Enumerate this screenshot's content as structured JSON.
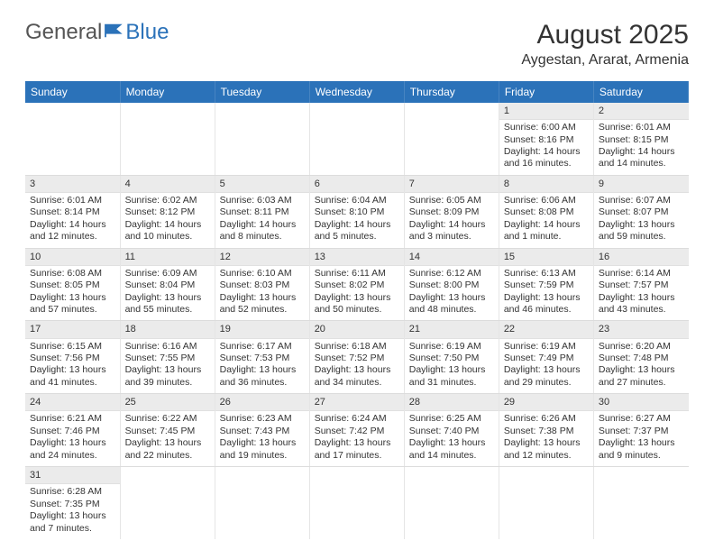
{
  "logo": {
    "part1": "General",
    "part2": "Blue"
  },
  "title": "August 2025",
  "subtitle": "Aygestan, Ararat, Armenia",
  "colors": {
    "accent": "#2b72b9",
    "header_text": "#ffffff",
    "daynum_bg": "#ebebeb",
    "border": "#dcdcdc"
  },
  "days_of_week": [
    "Sunday",
    "Monday",
    "Tuesday",
    "Wednesday",
    "Thursday",
    "Friday",
    "Saturday"
  ],
  "weeks": [
    [
      null,
      null,
      null,
      null,
      null,
      {
        "n": "1",
        "sr": "Sunrise: 6:00 AM",
        "ss": "Sunset: 8:16 PM",
        "dl1": "Daylight: 14 hours",
        "dl2": "and 16 minutes."
      },
      {
        "n": "2",
        "sr": "Sunrise: 6:01 AM",
        "ss": "Sunset: 8:15 PM",
        "dl1": "Daylight: 14 hours",
        "dl2": "and 14 minutes."
      }
    ],
    [
      {
        "n": "3",
        "sr": "Sunrise: 6:01 AM",
        "ss": "Sunset: 8:14 PM",
        "dl1": "Daylight: 14 hours",
        "dl2": "and 12 minutes."
      },
      {
        "n": "4",
        "sr": "Sunrise: 6:02 AM",
        "ss": "Sunset: 8:12 PM",
        "dl1": "Daylight: 14 hours",
        "dl2": "and 10 minutes."
      },
      {
        "n": "5",
        "sr": "Sunrise: 6:03 AM",
        "ss": "Sunset: 8:11 PM",
        "dl1": "Daylight: 14 hours",
        "dl2": "and 8 minutes."
      },
      {
        "n": "6",
        "sr": "Sunrise: 6:04 AM",
        "ss": "Sunset: 8:10 PM",
        "dl1": "Daylight: 14 hours",
        "dl2": "and 5 minutes."
      },
      {
        "n": "7",
        "sr": "Sunrise: 6:05 AM",
        "ss": "Sunset: 8:09 PM",
        "dl1": "Daylight: 14 hours",
        "dl2": "and 3 minutes."
      },
      {
        "n": "8",
        "sr": "Sunrise: 6:06 AM",
        "ss": "Sunset: 8:08 PM",
        "dl1": "Daylight: 14 hours",
        "dl2": "and 1 minute."
      },
      {
        "n": "9",
        "sr": "Sunrise: 6:07 AM",
        "ss": "Sunset: 8:07 PM",
        "dl1": "Daylight: 13 hours",
        "dl2": "and 59 minutes."
      }
    ],
    [
      {
        "n": "10",
        "sr": "Sunrise: 6:08 AM",
        "ss": "Sunset: 8:05 PM",
        "dl1": "Daylight: 13 hours",
        "dl2": "and 57 minutes."
      },
      {
        "n": "11",
        "sr": "Sunrise: 6:09 AM",
        "ss": "Sunset: 8:04 PM",
        "dl1": "Daylight: 13 hours",
        "dl2": "and 55 minutes."
      },
      {
        "n": "12",
        "sr": "Sunrise: 6:10 AM",
        "ss": "Sunset: 8:03 PM",
        "dl1": "Daylight: 13 hours",
        "dl2": "and 52 minutes."
      },
      {
        "n": "13",
        "sr": "Sunrise: 6:11 AM",
        "ss": "Sunset: 8:02 PM",
        "dl1": "Daylight: 13 hours",
        "dl2": "and 50 minutes."
      },
      {
        "n": "14",
        "sr": "Sunrise: 6:12 AM",
        "ss": "Sunset: 8:00 PM",
        "dl1": "Daylight: 13 hours",
        "dl2": "and 48 minutes."
      },
      {
        "n": "15",
        "sr": "Sunrise: 6:13 AM",
        "ss": "Sunset: 7:59 PM",
        "dl1": "Daylight: 13 hours",
        "dl2": "and 46 minutes."
      },
      {
        "n": "16",
        "sr": "Sunrise: 6:14 AM",
        "ss": "Sunset: 7:57 PM",
        "dl1": "Daylight: 13 hours",
        "dl2": "and 43 minutes."
      }
    ],
    [
      {
        "n": "17",
        "sr": "Sunrise: 6:15 AM",
        "ss": "Sunset: 7:56 PM",
        "dl1": "Daylight: 13 hours",
        "dl2": "and 41 minutes."
      },
      {
        "n": "18",
        "sr": "Sunrise: 6:16 AM",
        "ss": "Sunset: 7:55 PM",
        "dl1": "Daylight: 13 hours",
        "dl2": "and 39 minutes."
      },
      {
        "n": "19",
        "sr": "Sunrise: 6:17 AM",
        "ss": "Sunset: 7:53 PM",
        "dl1": "Daylight: 13 hours",
        "dl2": "and 36 minutes."
      },
      {
        "n": "20",
        "sr": "Sunrise: 6:18 AM",
        "ss": "Sunset: 7:52 PM",
        "dl1": "Daylight: 13 hours",
        "dl2": "and 34 minutes."
      },
      {
        "n": "21",
        "sr": "Sunrise: 6:19 AM",
        "ss": "Sunset: 7:50 PM",
        "dl1": "Daylight: 13 hours",
        "dl2": "and 31 minutes."
      },
      {
        "n": "22",
        "sr": "Sunrise: 6:19 AM",
        "ss": "Sunset: 7:49 PM",
        "dl1": "Daylight: 13 hours",
        "dl2": "and 29 minutes."
      },
      {
        "n": "23",
        "sr": "Sunrise: 6:20 AM",
        "ss": "Sunset: 7:48 PM",
        "dl1": "Daylight: 13 hours",
        "dl2": "and 27 minutes."
      }
    ],
    [
      {
        "n": "24",
        "sr": "Sunrise: 6:21 AM",
        "ss": "Sunset: 7:46 PM",
        "dl1": "Daylight: 13 hours",
        "dl2": "and 24 minutes."
      },
      {
        "n": "25",
        "sr": "Sunrise: 6:22 AM",
        "ss": "Sunset: 7:45 PM",
        "dl1": "Daylight: 13 hours",
        "dl2": "and 22 minutes."
      },
      {
        "n": "26",
        "sr": "Sunrise: 6:23 AM",
        "ss": "Sunset: 7:43 PM",
        "dl1": "Daylight: 13 hours",
        "dl2": "and 19 minutes."
      },
      {
        "n": "27",
        "sr": "Sunrise: 6:24 AM",
        "ss": "Sunset: 7:42 PM",
        "dl1": "Daylight: 13 hours",
        "dl2": "and 17 minutes."
      },
      {
        "n": "28",
        "sr": "Sunrise: 6:25 AM",
        "ss": "Sunset: 7:40 PM",
        "dl1": "Daylight: 13 hours",
        "dl2": "and 14 minutes."
      },
      {
        "n": "29",
        "sr": "Sunrise: 6:26 AM",
        "ss": "Sunset: 7:38 PM",
        "dl1": "Daylight: 13 hours",
        "dl2": "and 12 minutes."
      },
      {
        "n": "30",
        "sr": "Sunrise: 6:27 AM",
        "ss": "Sunset: 7:37 PM",
        "dl1": "Daylight: 13 hours",
        "dl2": "and 9 minutes."
      }
    ],
    [
      {
        "n": "31",
        "sr": "Sunrise: 6:28 AM",
        "ss": "Sunset: 7:35 PM",
        "dl1": "Daylight: 13 hours",
        "dl2": "and 7 minutes."
      },
      null,
      null,
      null,
      null,
      null,
      null
    ]
  ]
}
